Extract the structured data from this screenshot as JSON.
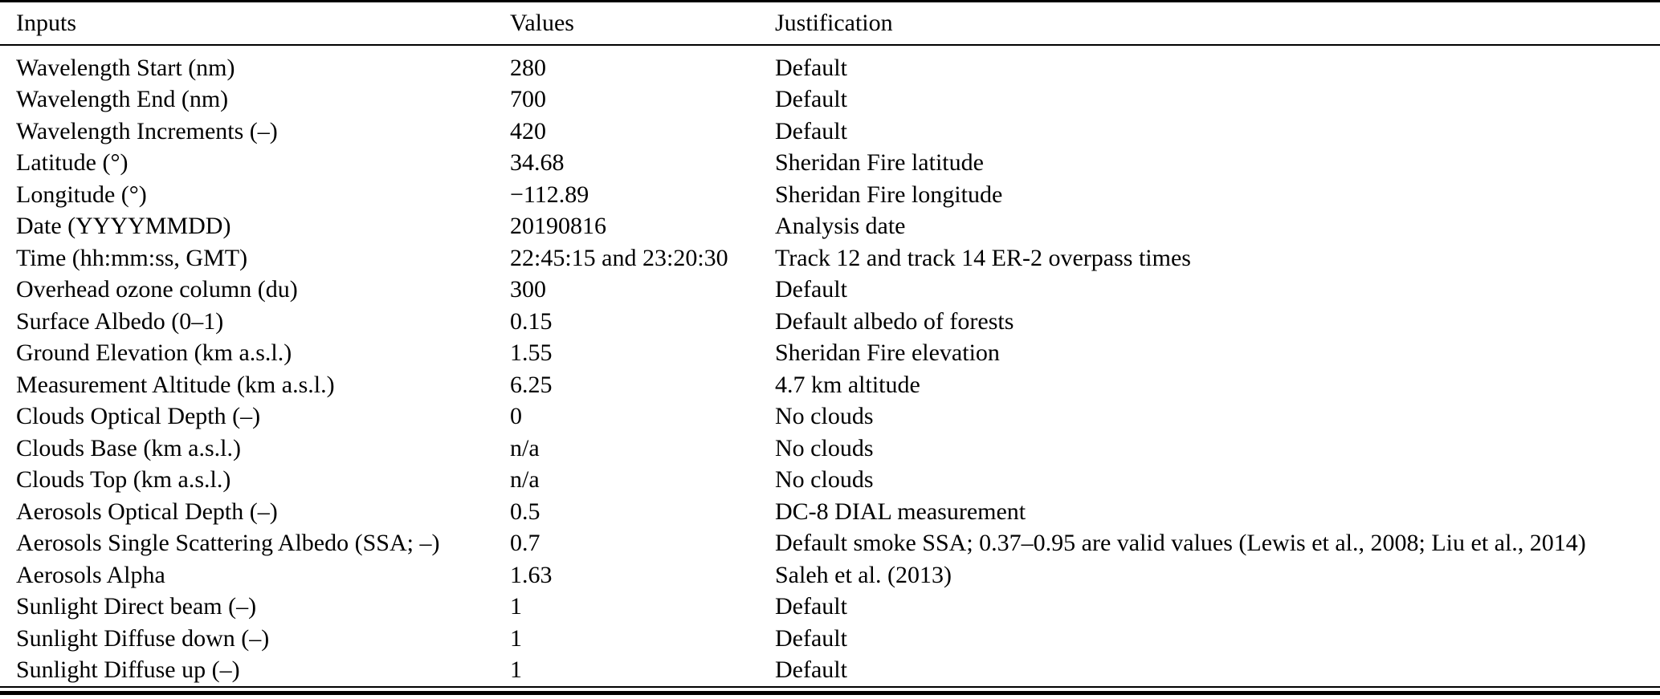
{
  "colors": {
    "text": "#000000",
    "background": "#ffffff",
    "rule": "#000000"
  },
  "table": {
    "columns": [
      "Inputs",
      "Values",
      "Justification"
    ],
    "rows": [
      {
        "input": "Wavelength Start (nm)",
        "value": "280",
        "justification": "Default"
      },
      {
        "input": "Wavelength End (nm)",
        "value": "700",
        "justification": "Default"
      },
      {
        "input": "Wavelength Increments (–)",
        "value": "420",
        "justification": "Default"
      },
      {
        "input": "Latitude (°)",
        "value": "34.68",
        "justification": "Sheridan Fire latitude"
      },
      {
        "input": "Longitude (°)",
        "value": "−112.89",
        "justification": "Sheridan Fire longitude"
      },
      {
        "input": "Date (YYYYMMDD)",
        "value": "20190816",
        "justification": "Analysis date"
      },
      {
        "input": "Time (hh:mm:ss, GMT)",
        "value": "22:45:15 and 23:20:30",
        "justification": "Track 12 and track 14 ER-2 overpass times"
      },
      {
        "input": "Overhead ozone column (du)",
        "value": "300",
        "justification": "Default"
      },
      {
        "input": "Surface Albedo (0–1)",
        "value": "0.15",
        "justification": "Default albedo of forests"
      },
      {
        "input": "Ground Elevation (km a.s.l.)",
        "value": "1.55",
        "justification": "Sheridan Fire elevation"
      },
      {
        "input": "Measurement Altitude (km a.s.l.)",
        "value": "6.25",
        "justification": "4.7 km altitude"
      },
      {
        "input": "Clouds Optical Depth (–)",
        "value": "0",
        "justification": "No clouds"
      },
      {
        "input": "Clouds Base (km a.s.l.)",
        "value": "n/a",
        "justification": "No clouds"
      },
      {
        "input": "Clouds Top (km a.s.l.)",
        "value": "n/a",
        "justification": "No clouds"
      },
      {
        "input": "Aerosols Optical Depth (–)",
        "value": "0.5",
        "justification": "DC-8 DIAL measurement"
      },
      {
        "input": "Aerosols Single Scattering Albedo (SSA; –)",
        "value": "0.7",
        "justification": "Default smoke SSA; 0.37–0.95 are valid values (Lewis et al., 2008; Liu et al., 2014)"
      },
      {
        "input": "Aerosols Alpha",
        "value": "1.63",
        "justification": "Saleh et al. (2013)"
      },
      {
        "input": "Sunlight Direct beam (–)",
        "value": "1",
        "justification": "Default"
      },
      {
        "input": "Sunlight Diffuse down (–)",
        "value": "1",
        "justification": "Default"
      },
      {
        "input": "Sunlight Diffuse up (–)",
        "value": "1",
        "justification": "Default"
      }
    ]
  }
}
